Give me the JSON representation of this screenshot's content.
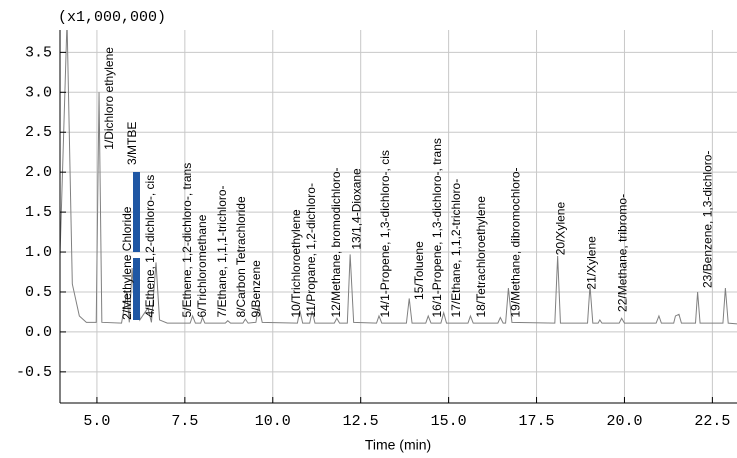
{
  "chart_data": {
    "type": "line",
    "y_unit_label": "(x1,000,000)",
    "xlabel": "Time (min)",
    "xlim": [
      3.95,
      23.2
    ],
    "ylim": [
      -0.89,
      3.78
    ],
    "xticks": [
      {
        "value": 5,
        "label": "5.0"
      },
      7.5,
      {
        "value": 10,
        "label": "10.0"
      },
      12.5,
      {
        "value": 15,
        "label": "15.0"
      },
      17.5,
      {
        "value": 20,
        "label": "20.0"
      },
      22.5
    ],
    "yticks": [
      3.5,
      {
        "value": 3,
        "label": "3.0"
      },
      2.5,
      {
        "value": 2,
        "label": "2.0"
      },
      1.5,
      {
        "value": 1,
        "label": "1.0"
      },
      0.5,
      {
        "value": 0,
        "label": "0.0"
      },
      -0.5
    ],
    "grid": true,
    "series": [
      {
        "color": "#808080",
        "x": [
          3.95,
          4.15,
          4.3,
          4.5,
          4.7,
          4.98,
          5.06,
          5.14,
          5.7,
          5.85,
          5.92,
          6.0,
          6.08,
          6.15,
          6.22,
          6.45,
          6.55,
          6.68,
          6.78,
          7.0,
          7.65,
          7.72,
          7.8,
          7.95,
          8.0,
          8.07,
          8.65,
          8.72,
          8.8,
          9.15,
          9.22,
          9.3,
          9.52,
          9.6,
          9.7,
          10.7,
          10.77,
          10.85,
          11.05,
          11.12,
          11.2,
          11.75,
          11.82,
          11.9,
          12.12,
          12.2,
          12.3,
          12.95,
          13.02,
          13.1,
          13.8,
          13.88,
          13.96,
          14.35,
          14.42,
          14.5,
          14.78,
          14.86,
          14.94,
          15.55,
          15.62,
          15.7,
          16.4,
          16.47,
          16.55,
          16.62,
          16.7,
          16.8,
          18.02,
          18.1,
          18.18,
          18.95,
          19.02,
          19.1,
          19.25,
          19.3,
          19.36,
          19.85,
          19.92,
          20.0,
          20.9,
          20.98,
          21.05,
          21.4,
          21.45,
          21.55,
          21.62,
          22.02,
          22.08,
          22.15,
          22.8,
          22.87,
          22.95,
          23.2
        ],
        "values": [
          0.95,
          3.9,
          0.6,
          0.2,
          0.12,
          0.12,
          3.0,
          0.12,
          0.11,
          0.5,
          0.12,
          0.8,
          0.15,
          0.9,
          0.15,
          0.3,
          0.12,
          0.87,
          0.15,
          0.11,
          0.11,
          0.2,
          0.11,
          0.11,
          0.18,
          0.11,
          0.11,
          0.14,
          0.11,
          0.11,
          0.16,
          0.11,
          0.12,
          0.33,
          0.12,
          0.11,
          0.27,
          0.11,
          0.11,
          0.26,
          0.11,
          0.11,
          0.17,
          0.11,
          0.11,
          0.97,
          0.12,
          0.11,
          0.2,
          0.11,
          0.11,
          0.42,
          0.11,
          0.11,
          0.2,
          0.11,
          0.11,
          0.24,
          0.11,
          0.11,
          0.2,
          0.11,
          0.11,
          0.18,
          0.11,
          0.11,
          0.55,
          0.12,
          0.11,
          0.95,
          0.11,
          0.11,
          0.58,
          0.11,
          0.11,
          0.15,
          0.11,
          0.11,
          0.17,
          0.11,
          0.11,
          0.2,
          0.11,
          0.11,
          0.2,
          0.22,
          0.11,
          0.11,
          0.5,
          0.11,
          0.11,
          0.55,
          0.11,
          0.1
        ]
      }
    ],
    "annotations": [
      {
        "text": "1/Dichloro ethylene",
        "x": 5.37,
        "y": 2.28
      },
      {
        "text": "2/Methylene Chloride",
        "x": 5.88,
        "y": 0.15
      },
      {
        "text": "3/MTBE",
        "x": 6.02,
        "y": 2.09
      },
      {
        "text": "4/Ethene, 1,2-dichloro-, cis",
        "x": 6.53,
        "y": 0.18
      },
      {
        "text": "5/Ethene, 1,2-dichloro-, trans",
        "x": 7.59,
        "y": 0.18
      },
      {
        "text": "6/Trichloromethane",
        "x": 8.01,
        "y": 0.18
      },
      {
        "text": "7/Ethane, 1,1,1-trichloro-",
        "x": 8.58,
        "y": 0.18
      },
      {
        "text": "8/Carbon Tetrachloride",
        "x": 9.12,
        "y": 0.18
      },
      {
        "text": "9/Benzene",
        "x": 9.55,
        "y": 0.18
      },
      {
        "text": "10/Trichloroethylene",
        "x": 10.68,
        "y": 0.18
      },
      {
        "text": "11/Propane, 1,2-dichloro-",
        "x": 11.11,
        "y": 0.18
      },
      {
        "text": "12/Methane, bromodichloro-",
        "x": 11.82,
        "y": 0.18
      },
      {
        "text": "13/1,4-Dioxane",
        "x": 12.41,
        "y": 1.03
      },
      {
        "text": "14/1-Propene, 1,3-dichloro-, cis",
        "x": 13.21,
        "y": 0.18
      },
      {
        "text": "15/Toluene",
        "x": 14.18,
        "y": 0.4
      },
      {
        "text": "16/1-Propene, 1,3-dichloro-, trans",
        "x": 14.69,
        "y": 0.18
      },
      {
        "text": "17/Ethane, 1,1,2-trichloro-",
        "x": 15.23,
        "y": 0.18
      },
      {
        "text": "18/Tetrachloroethylene",
        "x": 15.94,
        "y": 0.18
      },
      {
        "text": "19/Methane, dibromochloro-",
        "x": 16.93,
        "y": 0.18
      },
      {
        "text": "20/Xylene",
        "x": 18.21,
        "y": 0.96
      },
      {
        "text": "21/Xylene",
        "x": 19.09,
        "y": 0.53
      },
      {
        "text": "22/Methane, tribromo-",
        "x": 19.97,
        "y": 0.25
      },
      {
        "text": "23/Benzene, 1,3-dichloro-",
        "x": 22.39,
        "y": 0.55
      }
    ]
  }
}
